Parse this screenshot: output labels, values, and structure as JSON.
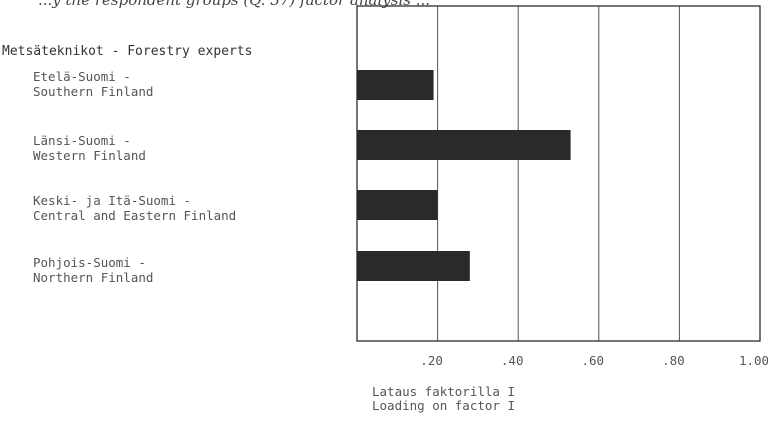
{
  "header": {
    "caption_fragment": "...y the respondent groups (Q. 37) factor analysis ..."
  },
  "chart_data": {
    "type": "bar",
    "orientation": "horizontal",
    "group_title": "Metsäteknikot - Forestry experts",
    "categories": [
      "Etelä-Suomi -\nSouthern Finland",
      "Länsi-Suomi -\nWestern Finland",
      "Keski- ja Itä-Suomi -\nCentral and Eastern Finland",
      "Pohjois-Suomi -\nNorthern Finland"
    ],
    "values": [
      0.19,
      0.53,
      0.2,
      0.28
    ],
    "xlim": [
      0,
      1.0
    ],
    "xticks": [
      0.2,
      0.4,
      0.6,
      0.8,
      1.0
    ],
    "xtick_labels": [
      ".20",
      ".40",
      ".60",
      ".80",
      "1.00"
    ],
    "xlabel": "Lataus faktorilla I\nLoading on factor I",
    "grid": "vertical",
    "bar_color": "#2a2a2a"
  }
}
